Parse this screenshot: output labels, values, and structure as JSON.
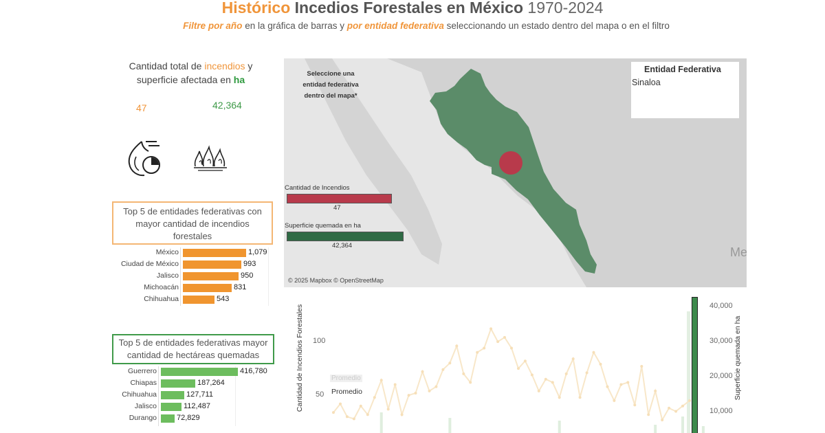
{
  "header": {
    "title_part1": "Histórico",
    "title_part2": "Incedios Forestales en México",
    "title_part3": "1970-2024",
    "sub_hl1": "Filtre por año",
    "sub_text1": "en la gráfica de barras y",
    "sub_hl2": "por entidad federativa",
    "sub_text2": "seleccionando un estado dentro del mapa o en el filtro"
  },
  "kpi": {
    "line1_a": "Cantidad total de",
    "line1_b": "incendios",
    "line1_c": "y",
    "line2_a": "superficie afectada en",
    "line2_b": "ha",
    "fires_value": "47",
    "area_value": "42,364"
  },
  "top_fires": {
    "title": "Top 5  de entidades federativas  con mayor cantidad de incendios forestales",
    "color": "#f0952f",
    "items": [
      {
        "label": "México",
        "value": 1079,
        "display": "1,079"
      },
      {
        "label": "Ciudad de México",
        "value": 993,
        "display": "993"
      },
      {
        "label": "Jalisco",
        "value": 950,
        "display": "950"
      },
      {
        "label": "Michoacán",
        "value": 831,
        "display": "831"
      },
      {
        "label": "Chihuahua",
        "value": 543,
        "display": "543"
      }
    ]
  },
  "top_area": {
    "title": "Top 5 de entidades federativas  mayor cantidad de hectáreas quemadas",
    "color": "#6dbd5e",
    "items": [
      {
        "label": "Guerrero",
        "value": 416780,
        "display": "416,780"
      },
      {
        "label": "Chiapas",
        "value": 187264,
        "display": "187,264"
      },
      {
        "label": "Chihuahua",
        "value": 127711,
        "display": "127,711"
      },
      {
        "label": "Jalisco",
        "value": 112487,
        "display": "112,487"
      },
      {
        "label": "Durango",
        "value": 72829,
        "display": "72,829"
      }
    ]
  },
  "map": {
    "instruction": "Seleccione una entidad federativa dentro del mapa*",
    "fires_label": "Cantidad de Incendios",
    "fires_value": "47",
    "fires_fraction": 0.9,
    "area_label": "Superficie quemada en ha",
    "area_value": "42,364",
    "area_fraction": 1.0,
    "attribution": "© 2025 Mapbox © OpenStreetMap",
    "edge_label": "Me",
    "state_color": "#5b8c69",
    "marker_color": "#b83a4b"
  },
  "entity_filter": {
    "title": "Entidad  Federativa",
    "value": "Sinaloa"
  },
  "chart_data": {
    "type": "line",
    "ylabel_left": "Cantidad de Incendios Forestales",
    "ylabel_right": "Superficie quemada en ha",
    "left_ticks": [
      "100",
      "50"
    ],
    "right_ticks": [
      "40,000",
      "30,000",
      "20,000",
      "10,000"
    ],
    "avg_tag": "Promedio",
    "avg_text": "Promedio",
    "series": [
      {
        "values": [
          32,
          40,
          28,
          26,
          38,
          30,
          46,
          62,
          35,
          58,
          30,
          48,
          50,
          70,
          52,
          56,
          72,
          78,
          94,
          68,
          60,
          88,
          92,
          110,
          98,
          102,
          92,
          73,
          80,
          67,
          52,
          63,
          60,
          46,
          68,
          82,
          46,
          69,
          88,
          77,
          56,
          43,
          58,
          60,
          39,
          75,
          30,
          52,
          25,
          36,
          33,
          38,
          43
        ]
      }
    ]
  }
}
